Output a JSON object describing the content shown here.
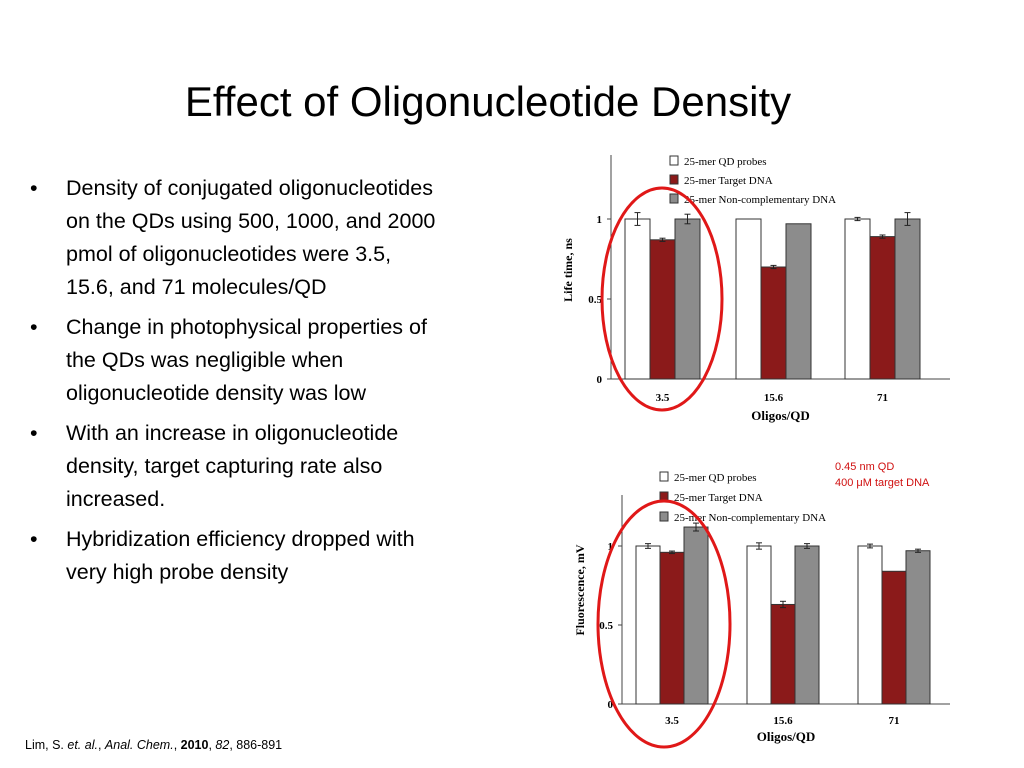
{
  "slide": {
    "title": "Effect of Oligonucleotide Density",
    "bullets": [
      {
        "marker": "•",
        "lines": [
          "Density of conjugated oligonucleotides",
          "on  the QDs using 500, 1000, and 2000",
          "pmol of oligonucleotides were 3.5,",
          "15.6, and 71 molecules/QD"
        ]
      },
      {
        "marker": "•",
        "lines": [
          "Change in photophysical properties of",
          "the QDs was negligible when",
          "oligonucleotide density was low"
        ]
      },
      {
        "marker": "•",
        "lines": [
          "With an increase in oligonucleotide",
          "density, target capturing rate also",
          "increased."
        ]
      },
      {
        "marker": "•",
        "lines": [
          "Hybridization efficiency dropped with",
          "very high probe density"
        ]
      }
    ],
    "condition_note": [
      "0.45 nm QD",
      "400 μM target DNA"
    ],
    "citation": {
      "author": "Lim, S. ",
      "etal": "et. al.",
      "sep1": ", ",
      "journal": "Anal. Chem.",
      "sep2": ", ",
      "year": "2010",
      "sep3": ", ",
      "volume": "82",
      "pages": ", 886-891"
    },
    "highlight_color": "#e01818",
    "series_colors": {
      "25-mer QD probes": "#ffffff",
      "25-mer Target DNA": "#8b1a1a",
      "25-mer Non-complementary DNA": "#8c8c8c"
    }
  },
  "chart_data": [
    {
      "type": "bar",
      "title": "",
      "xlabel": "Oligos/QD",
      "ylabel": "Life time, ns",
      "categories": [
        "3.5",
        "15.6",
        "71"
      ],
      "ylim": [
        0,
        1.1
      ],
      "yticks": [
        0,
        0.5,
        1
      ],
      "ytick_labels": [
        "0",
        "0.5",
        "1"
      ],
      "legend_position": "top",
      "series": [
        {
          "name": "25-mer QD probes",
          "color": "#ffffff",
          "values": [
            1.0,
            1.0,
            1.0
          ],
          "errors": [
            0.04,
            0.0,
            0.01
          ]
        },
        {
          "name": "25-mer Target DNA",
          "color": "#8b1a1a",
          "values": [
            0.87,
            0.7,
            0.89
          ],
          "errors": [
            0.01,
            0.01,
            0.01
          ]
        },
        {
          "name": "25-mer Non-complementary DNA",
          "color": "#8c8c8c",
          "values": [
            1.0,
            0.97,
            1.0
          ],
          "errors": [
            0.03,
            0.0,
            0.04
          ]
        }
      ]
    },
    {
      "type": "bar",
      "title": "",
      "xlabel": "Oligos/QD",
      "ylabel": "Fluorescence, mV",
      "categories": [
        "3.5",
        "15.6",
        "71"
      ],
      "ylim": [
        0,
        1.1
      ],
      "yticks": [
        0,
        0.5,
        1
      ],
      "ytick_labels": [
        "0",
        "0.5",
        "1"
      ],
      "legend_position": "top",
      "series": [
        {
          "name": "25-mer QD probes",
          "color": "#ffffff",
          "values": [
            1.0,
            1.0,
            1.0
          ],
          "errors": [
            0.015,
            0.02,
            0.012
          ]
        },
        {
          "name": "25-mer Target DNA",
          "color": "#8b1a1a",
          "values": [
            0.96,
            0.63,
            0.84
          ],
          "errors": [
            0.008,
            0.02,
            0.0
          ]
        },
        {
          "name": "25-mer Non-complementary DNA",
          "color": "#8c8c8c",
          "values": [
            1.12,
            1.0,
            0.97
          ],
          "errors": [
            0.025,
            0.015,
            0.01
          ]
        }
      ]
    }
  ]
}
